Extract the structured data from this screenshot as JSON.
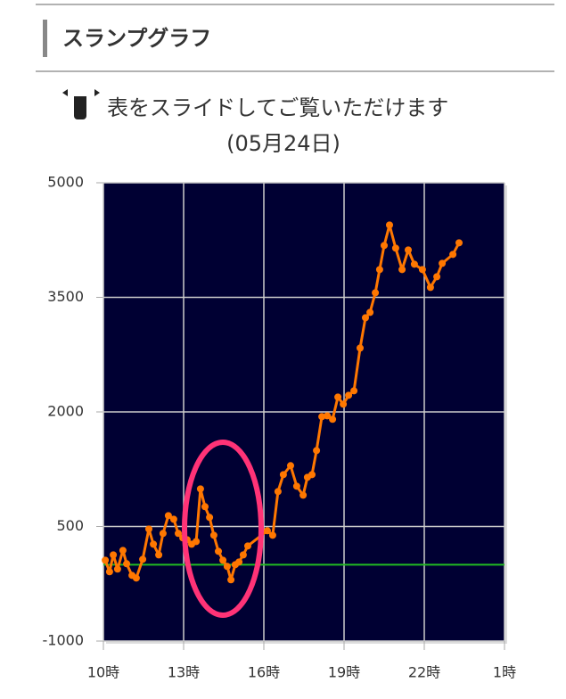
{
  "header": {
    "title": "スランプグラフ"
  },
  "notice": "表をスライドしてご覧いただけます",
  "chart_data": {
    "type": "line",
    "title": "(05月24日)",
    "x": [
      10.07,
      10.23,
      10.37,
      10.53,
      10.73,
      10.87,
      11.07,
      11.23,
      11.47,
      11.7,
      11.87,
      12.07,
      12.23,
      12.43,
      12.63,
      12.8,
      12.97,
      13.13,
      13.3,
      13.47,
      13.63,
      13.8,
      13.97,
      14.13,
      14.3,
      14.47,
      14.63,
      14.77,
      14.93,
      15.07,
      15.23,
      15.4,
      16.13,
      16.33,
      16.53,
      16.73,
      17,
      17.23,
      17.47,
      17.63,
      17.8,
      17.97,
      18.17,
      18.37,
      18.57,
      18.77,
      18.97,
      19.17,
      19.37,
      19.6,
      19.8,
      19.97,
      20.17,
      20.33,
      20.5,
      20.7,
      20.93,
      21.17,
      21.4,
      21.63,
      21.93,
      22.23,
      22.47,
      22.67,
      23.07,
      23.3
    ],
    "values": [
      58,
      -93,
      128,
      -58,
      187,
      12,
      -140,
      -175,
      70,
      467,
      268,
      128,
      409,
      642,
      595,
      409,
      350,
      327,
      268,
      303,
      992,
      759,
      619,
      385,
      175,
      58,
      -23,
      -198,
      0,
      35,
      128,
      245,
      444,
      385,
      957,
      1179,
      1296,
      1027,
      910,
      1144,
      1179,
      1494,
      1938,
      1949,
      1903,
      2194,
      2101,
      2218,
      2276,
      2836,
      3233,
      3303,
      3560,
      3864,
      4179,
      4447,
      4144,
      3864,
      4120,
      3934,
      3864,
      3630,
      3770,
      3945,
      4062,
      4214
    ],
    "color": "#ff7700",
    "xlim": [
      10,
      25
    ],
    "xticks": [
      {
        "value": 10,
        "label": "10時"
      },
      {
        "value": 13,
        "label": "13時"
      },
      {
        "value": 16,
        "label": "16時"
      },
      {
        "value": 19,
        "label": "19時"
      },
      {
        "value": 22,
        "label": "22時"
      },
      {
        "value": 25,
        "label": "1時"
      }
    ],
    "ylim": [
      -1000,
      5000
    ],
    "yticks": [
      -1000,
      500,
      2000,
      3500,
      5000
    ],
    "grid": true,
    "reference_line": 0,
    "reference_color": "#22bb22",
    "plot_background": "#000033"
  }
}
